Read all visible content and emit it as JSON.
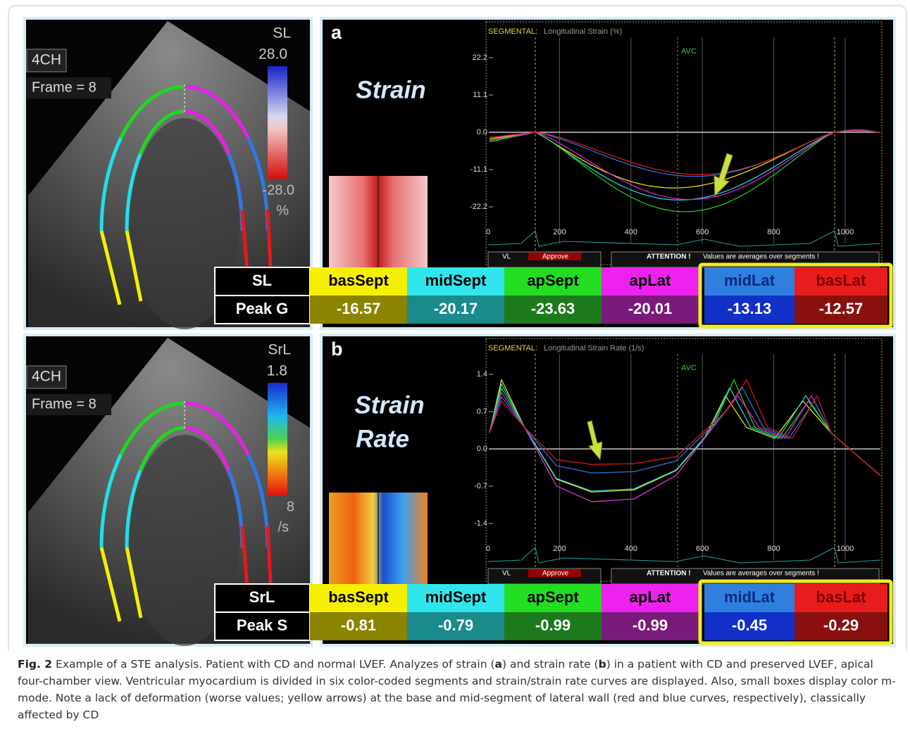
{
  "figure": {
    "panels": [
      {
        "letter": "a",
        "title": [
          "Strain"
        ],
        "echo": {
          "view": "4CH",
          "frame": "Frame = 8",
          "parameter": "SL",
          "scale_top": "28.0",
          "scale_bottom": "-28.0",
          "unit": "%"
        },
        "graph": {
          "header": "SEGMENTAL:",
          "subheader": "Longitudinal Strain (%)",
          "marker": "AVC",
          "yticks": [
            22.2,
            11.1,
            {
              "value": 0,
              "label": "0.0"
            },
            -11.1,
            -22.2
          ],
          "xticks": [
            0,
            200,
            400,
            600,
            800,
            1000
          ],
          "legend": [
            "VL",
            "Approve",
            "ATTENTION !",
            "Values are averages over segments !"
          ]
        },
        "table": {
          "row_label": "SL",
          "value_label": "Peak G",
          "segments": [
            "basSept",
            "midSept",
            "apSept",
            "apLat",
            "midLat",
            "basLat"
          ],
          "values": [
            -16.57,
            -20.17,
            -23.63,
            -20.01,
            -13.13,
            -12.57
          ]
        }
      },
      {
        "letter": "b",
        "title": [
          "Strain",
          "Rate"
        ],
        "echo": {
          "view": "4CH",
          "frame": "Frame = 8",
          "parameter": "SrL",
          "scale_top": "1.8",
          "scale_bottom": "8",
          "unit": "/s"
        },
        "graph": {
          "header": "SEGMENTAL:",
          "subheader": "Longitudinal Strain Rate (1/s)",
          "marker": "AVC",
          "yticks": [
            1.4,
            0.7,
            {
              "value": 0,
              "label": "0.0"
            },
            -0.7,
            -1.4
          ],
          "xticks": [
            0,
            200,
            400,
            600,
            800,
            1000
          ],
          "legend": [
            "VL",
            "Approve",
            "ATTENTION !",
            "Values are averages over segments !"
          ]
        },
        "table": {
          "row_label": "SrL",
          "value_label": "Peak S",
          "segments": [
            "basSept",
            "midSept",
            "apSept",
            "apLat",
            "midLat",
            "basLat"
          ],
          "values": [
            -0.81,
            -0.79,
            -0.99,
            -0.99,
            -0.45,
            -0.29
          ]
        }
      }
    ],
    "caption": {
      "label": "Fig. 2",
      "parts": [
        "Example of a STE analysis. Patient with CD and normal LVEF. Analyzes of strain (",
        "a",
        ") and strain rate (",
        "b",
        ") in a patient with CD and preserved LVEF, apical four-chamber view. Ventricular myocardium is divided in six color-coded segments and strain/strain rate curves are displayed. Also, small boxes display color m-mode. Note a lack of deformation (worse values; yellow arrows) at the base and mid-segment of lateral wall (red and blue curves, respectively), classically affected by CD"
      ]
    }
  }
}
